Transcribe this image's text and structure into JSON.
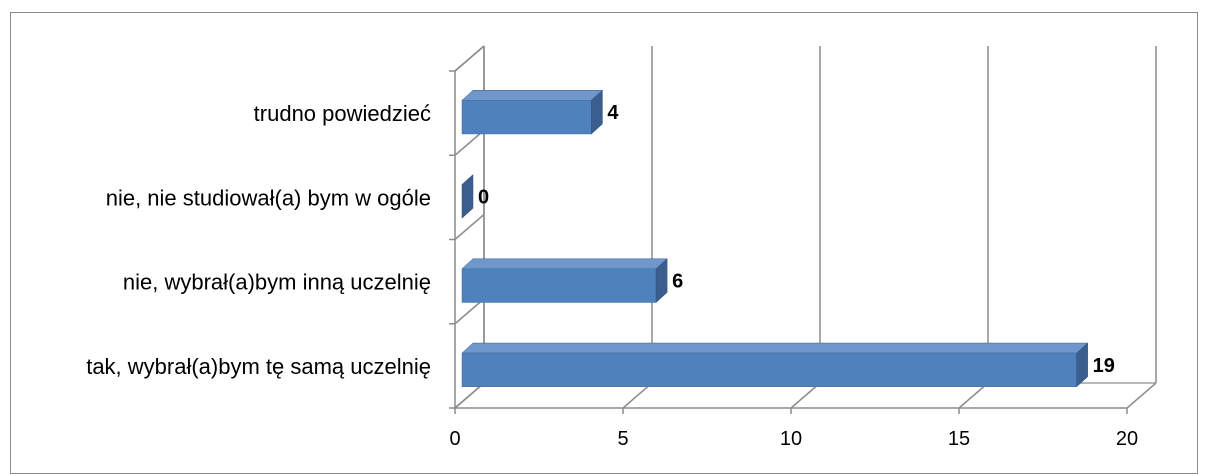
{
  "chart_data": {
    "type": "bar",
    "orientation": "horizontal",
    "style": "3d",
    "title": "",
    "xlabel": "",
    "ylabel": "",
    "categories": [
      "tak, wybrał(a)bym tę samą uczelnię",
      "nie, wybrał(a)bym inną uczelnię",
      "nie, nie studiował(a) bym w ogóle",
      "trudno powiedzieć"
    ],
    "values": [
      19,
      6,
      0,
      4
    ],
    "data_labels": [
      "19",
      "6",
      "0",
      "4"
    ],
    "xlim": [
      0,
      20
    ],
    "x_ticks": [
      0,
      5,
      10,
      15,
      20
    ],
    "x_tick_labels": [
      "0",
      "5",
      "10",
      "15",
      "20"
    ],
    "grid": true,
    "legend": "none",
    "colors": {
      "bar_front": "#4f81bd",
      "bar_top": "#6f97cc",
      "bar_side": "#3a5f8f",
      "grid": "#8c8c8c",
      "frame": "#8a8a8a"
    }
  }
}
